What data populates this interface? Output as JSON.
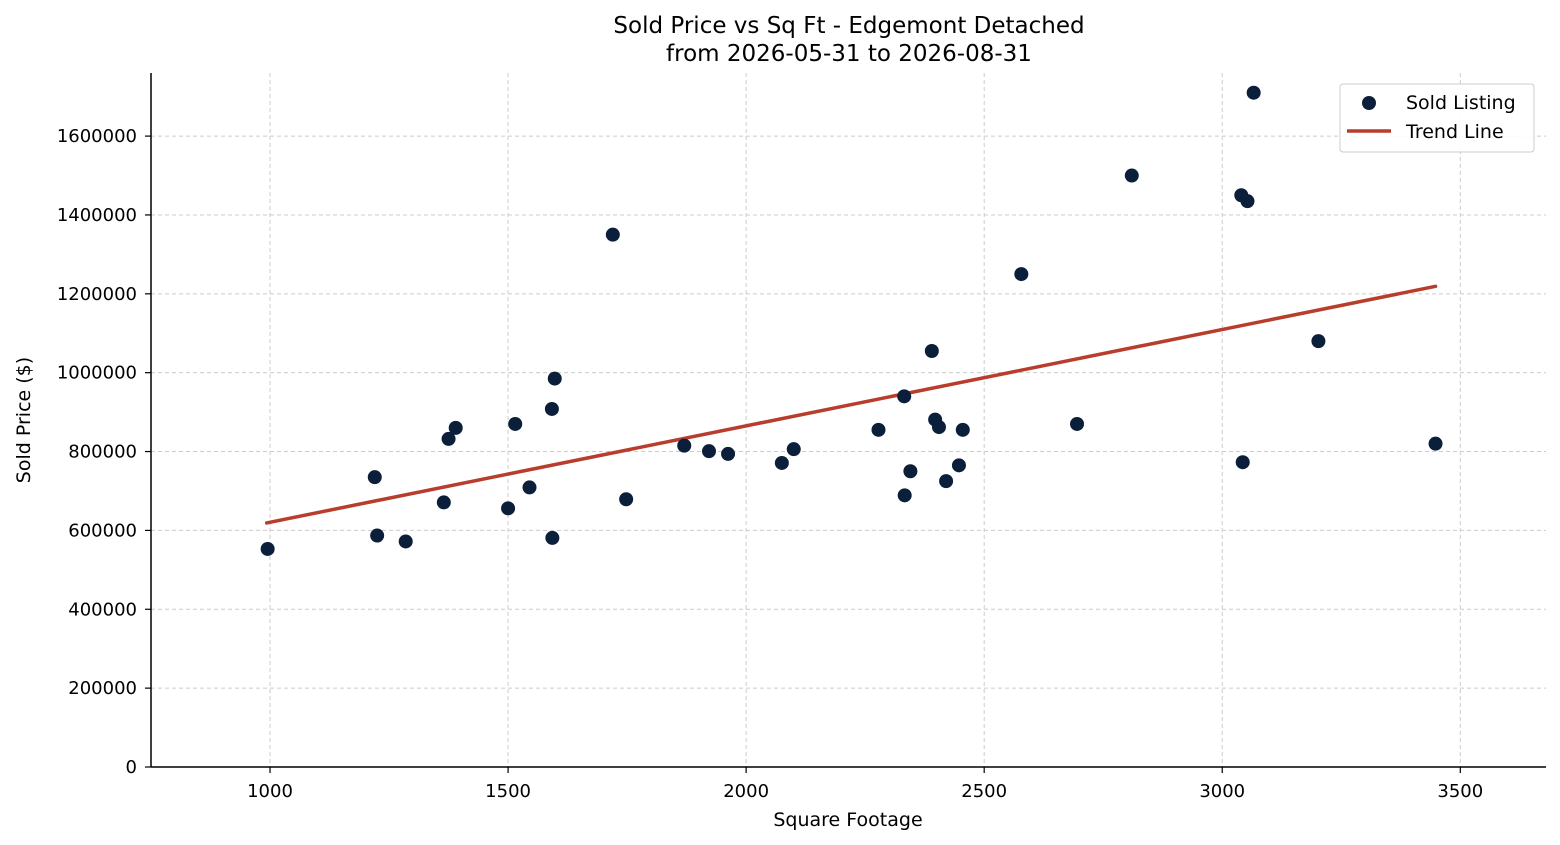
{
  "chart_data": {
    "type": "scatter",
    "title": "Sold Price vs Sq Ft - Edgemont Detached",
    "subtitle": "from 2026-05-31 to 2026-08-31",
    "xlabel": "Square Footage",
    "ylabel": "Sold Price ($)",
    "xlim": [
      750,
      3680
    ],
    "ylim": [
      0,
      1760000
    ],
    "x_ticks": [
      1000,
      1500,
      2000,
      2500,
      3000,
      3500
    ],
    "y_ticks": [
      0,
      200000,
      400000,
      600000,
      800000,
      1000000,
      1200000,
      1400000,
      1600000
    ],
    "grid": true,
    "legend_position": "top-right",
    "colors": {
      "points": "#0b1f3a",
      "trend": "#b83d2c"
    },
    "series": [
      {
        "name": "Sold Listing",
        "kind": "scatter",
        "points": [
          [
            995,
            553000
          ],
          [
            1220,
            735000
          ],
          [
            1225,
            587000
          ],
          [
            1285,
            572000
          ],
          [
            1365,
            671000
          ],
          [
            1375,
            832000
          ],
          [
            1390,
            860000
          ],
          [
            1500,
            656000
          ],
          [
            1515,
            870000
          ],
          [
            1545,
            709000
          ],
          [
            1592,
            908000
          ],
          [
            1593,
            581000
          ],
          [
            1598,
            985000
          ],
          [
            1720,
            1350000
          ],
          [
            1748,
            679000
          ],
          [
            1870,
            815000
          ],
          [
            1922,
            801000
          ],
          [
            1962,
            794000
          ],
          [
            2075,
            771000
          ],
          [
            2100,
            806000
          ],
          [
            2278,
            855000
          ],
          [
            2332,
            940000
          ],
          [
            2333,
            689000
          ],
          [
            2345,
            750000
          ],
          [
            2390,
            1055000
          ],
          [
            2397,
            881000
          ],
          [
            2405,
            862000
          ],
          [
            2420,
            725000
          ],
          [
            2447,
            765000
          ],
          [
            2455,
            855000
          ],
          [
            2578,
            1250000
          ],
          [
            2695,
            870000
          ],
          [
            2810,
            1500000
          ],
          [
            3040,
            1450000
          ],
          [
            3043,
            773000
          ],
          [
            3053,
            1435000
          ],
          [
            3066,
            1710000
          ],
          [
            3202,
            1080000
          ],
          [
            3448,
            820000
          ]
        ]
      },
      {
        "name": "Trend Line",
        "kind": "line",
        "points": [
          [
            993,
            619000
          ],
          [
            3448,
            1219000
          ]
        ]
      }
    ]
  }
}
